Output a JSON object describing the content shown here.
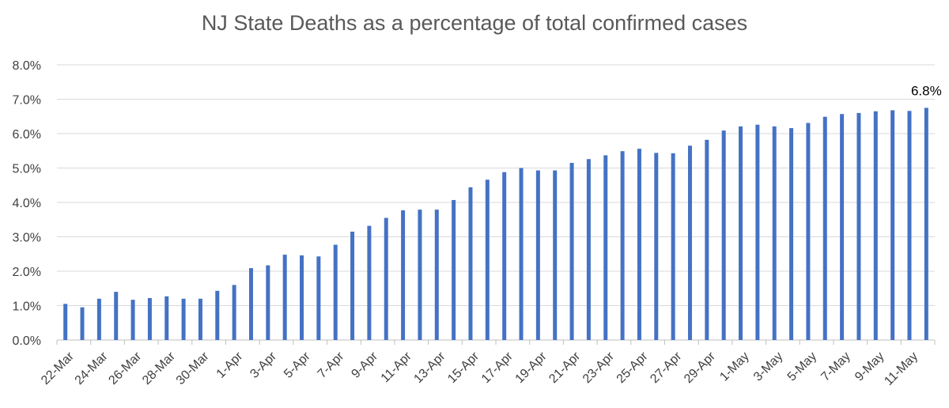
{
  "chart_data": {
    "type": "bar",
    "title": "NJ State Deaths as a percentage of total confirmed cases",
    "xlabel": "",
    "ylabel": "",
    "ylim": [
      0,
      8.0
    ],
    "yticks": [
      0,
      1,
      2,
      3,
      4,
      5,
      6,
      7,
      8
    ],
    "ytick_labels": [
      "0.0%",
      "1.0%",
      "2.0%",
      "3.0%",
      "4.0%",
      "5.0%",
      "6.0%",
      "7.0%",
      "8.0%"
    ],
    "grid": true,
    "legend": "none",
    "bar_color": "#4472C4",
    "categories": [
      "22-Mar",
      "23-Mar",
      "24-Mar",
      "25-Mar",
      "26-Mar",
      "27-Mar",
      "28-Mar",
      "29-Mar",
      "30-Mar",
      "31-Mar",
      "1-Apr",
      "2-Apr",
      "3-Apr",
      "4-Apr",
      "5-Apr",
      "6-Apr",
      "7-Apr",
      "8-Apr",
      "9-Apr",
      "10-Apr",
      "11-Apr",
      "12-Apr",
      "13-Apr",
      "14-Apr",
      "15-Apr",
      "16-Apr",
      "17-Apr",
      "18-Apr",
      "19-Apr",
      "20-Apr",
      "21-Apr",
      "22-Apr",
      "23-Apr",
      "24-Apr",
      "25-Apr",
      "26-Apr",
      "27-Apr",
      "28-Apr",
      "29-Apr",
      "30-Apr",
      "1-May",
      "2-May",
      "3-May",
      "4-May",
      "5-May",
      "6-May",
      "7-May",
      "8-May",
      "9-May",
      "10-May",
      "11-May",
      "12-May"
    ],
    "xtick_labels": [
      "22-Mar",
      "",
      "24-Mar",
      "",
      "26-Mar",
      "",
      "28-Mar",
      "",
      "30-Mar",
      "",
      "1-Apr",
      "",
      "3-Apr",
      "",
      "5-Apr",
      "",
      "7-Apr",
      "",
      "9-Apr",
      "",
      "11-Apr",
      "",
      "13-Apr",
      "",
      "15-Apr",
      "",
      "17-Apr",
      "",
      "19-Apr",
      "",
      "21-Apr",
      "",
      "23-Apr",
      "",
      "25-Apr",
      "",
      "27-Apr",
      "",
      "29-Apr",
      "",
      "1-May",
      "",
      "3-May",
      "",
      "5-May",
      "",
      "7-May",
      "",
      "9-May",
      "",
      "11-May",
      ""
    ],
    "values": [
      1.05,
      0.95,
      1.2,
      1.4,
      1.17,
      1.22,
      1.27,
      1.2,
      1.2,
      1.43,
      1.6,
      2.09,
      2.17,
      2.48,
      2.46,
      2.43,
      2.77,
      3.15,
      3.32,
      3.55,
      3.77,
      3.79,
      3.79,
      4.07,
      4.44,
      4.66,
      4.88,
      5.0,
      4.93,
      4.93,
      5.15,
      5.26,
      5.37,
      5.49,
      5.56,
      5.44,
      5.43,
      5.65,
      5.82,
      6.09,
      6.21,
      6.26,
      6.21,
      6.16,
      6.31,
      6.49,
      6.57,
      6.6,
      6.65,
      6.68,
      6.66,
      6.75
    ],
    "data_labels": [
      {
        "index": 51,
        "text": "6.8%"
      }
    ]
  }
}
